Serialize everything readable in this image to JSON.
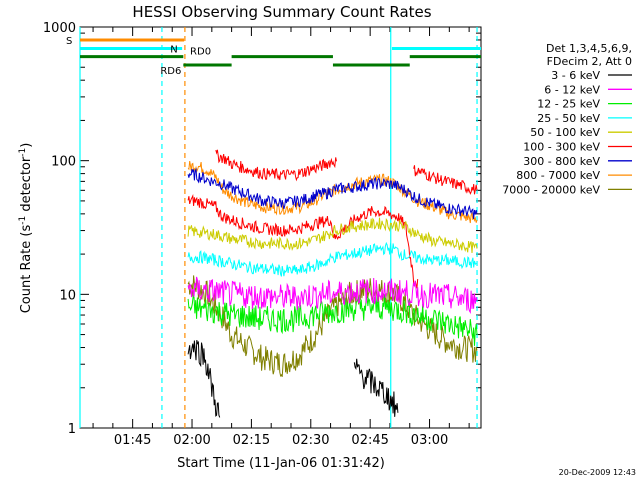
{
  "chart_data": {
    "type": "line",
    "title": "HESSI Observing Summary Count Rates",
    "xlabel": "Start Time (11-Jan-06 01:31:42)",
    "ylabel_main": "Count Rate (s",
    "ylabel_sup1": "-1",
    "ylabel_mid": " detector",
    "ylabel_sup2": "-1",
    "ylabel_end": ")",
    "date_stamp": "20-Dec-2009 12:43",
    "x_ticks": [
      {
        "label": "01:45",
        "min": 105
      },
      {
        "label": "02:00",
        "min": 120
      },
      {
        "label": "02:15",
        "min": 135
      },
      {
        "label": "02:30",
        "min": 150
      },
      {
        "label": "02:45",
        "min": 165
      },
      {
        "label": "03:00",
        "min": 180
      }
    ],
    "x_range_min": [
      91.7,
      193
    ],
    "y_scale": "log",
    "y_range": [
      1,
      1000
    ],
    "y_ticks": [
      {
        "label": "1",
        "v": 1
      },
      {
        "label": "10",
        "v": 10
      },
      {
        "label": "100",
        "v": 100
      },
      {
        "label": "1000",
        "v": 1000
      }
    ],
    "legend": {
      "placement": "right",
      "header1": "Det 1,3,4,5,6,9,",
      "header2": "FDecim 2, Att 0",
      "items": [
        {
          "label": "3 - 6 keV",
          "color": "#000000"
        },
        {
          "label": "6 - 12 keV",
          "color": "#ff00ff"
        },
        {
          "label": "12 - 25 keV",
          "color": "#00ee00"
        },
        {
          "label": "25 - 50 keV",
          "color": "#00ffff"
        },
        {
          "label": "50 - 100 keV",
          "color": "#cccc00"
        },
        {
          "label": "100 - 300 keV",
          "color": "#ff0000"
        },
        {
          "label": "300 - 800 keV",
          "color": "#0000cc"
        },
        {
          "label": "800 - 7000 keV",
          "color": "#ff8c00"
        },
        {
          "label": "7000 - 20000 keV",
          "color": "#808000"
        }
      ]
    },
    "flags": [
      {
        "label": "S",
        "color": "#ff8c00",
        "y": 800,
        "segments": [
          [
            91.7,
            118
          ]
        ]
      },
      {
        "label": "N",
        "color": "#00ffff",
        "y": 690,
        "segments": [
          [
            91.7,
            117.5
          ],
          [
            170.5,
            193
          ]
        ]
      },
      {
        "label": "RD0",
        "color": "#007700",
        "y": 600,
        "segments": [
          [
            91.7,
            117.8
          ],
          [
            130,
            155.6
          ],
          [
            175,
            193
          ]
        ]
      },
      {
        "label": "RD6",
        "color": "#007700",
        "y": 520,
        "segments": [
          [
            117.8,
            130
          ],
          [
            155.6,
            175
          ]
        ]
      }
    ],
    "vlines": [
      {
        "min": 91.7,
        "color": "#00ffff",
        "style": "solid"
      },
      {
        "min": 112.4,
        "color": "#00ffff",
        "style": "dashed"
      },
      {
        "min": 118.2,
        "color": "#ff8c00",
        "style": "dashed"
      },
      {
        "min": 170.2,
        "color": "#00ffff",
        "style": "solid"
      },
      {
        "min": 192,
        "color": "#00ffff",
        "style": "dashed"
      }
    ],
    "series": [
      {
        "name": "7000 - 20000 keV",
        "color": "#808000",
        "points": [
          [
            119,
            12
          ],
          [
            121,
            11.5
          ],
          [
            124,
            10
          ],
          [
            126,
            8
          ],
          [
            128,
            6.5
          ],
          [
            130,
            5
          ],
          [
            134,
            4
          ],
          [
            138,
            3.3
          ],
          [
            143,
            3
          ],
          [
            147,
            3.5
          ],
          [
            150,
            4.5
          ],
          [
            153,
            6
          ],
          [
            156,
            8
          ],
          [
            160,
            10
          ],
          [
            165,
            11
          ],
          [
            169,
            10.5
          ],
          [
            171,
            10
          ],
          [
            173,
            9
          ],
          [
            176,
            7
          ],
          [
            180,
            5.5
          ],
          [
            184,
            4.5
          ],
          [
            188,
            4
          ],
          [
            192,
            3.8
          ]
        ]
      },
      {
        "name": "800 - 7000 keV",
        "color": "#ff8c00",
        "points": [
          [
            119,
            90
          ],
          [
            121,
            92
          ],
          [
            124,
            85
          ],
          [
            126,
            75
          ],
          [
            128,
            60
          ],
          [
            130,
            55
          ],
          [
            134,
            48
          ],
          [
            138,
            45
          ],
          [
            143,
            44
          ],
          [
            147,
            45
          ],
          [
            150,
            48
          ],
          [
            153,
            55
          ],
          [
            156,
            60
          ],
          [
            160,
            66
          ],
          [
            164,
            70
          ],
          [
            168,
            72
          ],
          [
            170,
            70
          ],
          [
            172,
            65
          ],
          [
            174,
            58
          ],
          [
            177,
            50
          ],
          [
            181,
            45
          ],
          [
            185,
            40
          ],
          [
            189,
            38
          ],
          [
            192,
            36
          ]
        ]
      },
      {
        "name": "300 - 800 keV",
        "color": "#0000cc",
        "points": [
          [
            119,
            80
          ],
          [
            121,
            78
          ],
          [
            124,
            72
          ],
          [
            127,
            68
          ],
          [
            130,
            62
          ],
          [
            134,
            56
          ],
          [
            138,
            50
          ],
          [
            143,
            48
          ],
          [
            147,
            50
          ],
          [
            150,
            53
          ],
          [
            152,
            56
          ],
          [
            154,
            57
          ],
          [
            156,
            61
          ],
          [
            160,
            63
          ],
          [
            164,
            66
          ],
          [
            168,
            68
          ],
          [
            171,
            66
          ],
          [
            174,
            60
          ],
          [
            177,
            52
          ],
          [
            181,
            47
          ],
          [
            185,
            44
          ],
          [
            189,
            42
          ],
          [
            192,
            40
          ]
        ]
      },
      {
        "name": "100 - 300 keV",
        "color": "#ff0000",
        "points": [
          [
            119,
            50
          ],
          [
            121,
            50
          ],
          [
            124,
            47
          ],
          [
            126,
            45
          ],
          [
            127,
            40
          ],
          [
            128,
            38
          ],
          [
            130,
            36
          ],
          [
            134,
            33
          ],
          [
            138,
            31
          ],
          [
            143,
            30
          ],
          [
            147,
            31
          ],
          [
            150,
            33
          ],
          [
            153,
            35
          ],
          [
            155,
            36
          ],
          [
            156,
            26
          ],
          [
            158,
            30
          ],
          [
            162,
            38
          ],
          [
            166,
            42
          ],
          [
            170,
            40
          ],
          [
            172,
            38
          ],
          [
            174,
            32
          ],
          [
            175,
            20
          ],
          [
            176,
            14
          ],
          [
            177,
            13
          ]
        ]
      },
      {
        "name": "100 - 300 keV (seg 2)",
        "color": "#ff0000",
        "points": [
          [
            126,
            110
          ],
          [
            128,
            105
          ],
          [
            130,
            95
          ],
          [
            134,
            86
          ],
          [
            138,
            80
          ],
          [
            143,
            78
          ],
          [
            147,
            80
          ],
          [
            150,
            86
          ],
          [
            153,
            92
          ],
          [
            155,
            98
          ],
          [
            156.5,
            99
          ]
        ]
      },
      {
        "name": "100 - 300 keV (seg 3)",
        "color": "#ff0000",
        "points": [
          [
            176,
            85
          ],
          [
            178,
            82
          ],
          [
            181,
            75
          ],
          [
            184,
            70
          ],
          [
            188,
            65
          ],
          [
            192,
            60
          ]
        ]
      },
      {
        "name": "50 - 100 keV",
        "color": "#cccc00",
        "points": [
          [
            119,
            30
          ],
          [
            122,
            29
          ],
          [
            126,
            28
          ],
          [
            130,
            26
          ],
          [
            134,
            25
          ],
          [
            138,
            24
          ],
          [
            143,
            24
          ],
          [
            147,
            24
          ],
          [
            150,
            25
          ],
          [
            153,
            27
          ],
          [
            156,
            30
          ],
          [
            160,
            32
          ],
          [
            164,
            33
          ],
          [
            168,
            34
          ],
          [
            171,
            33
          ],
          [
            174,
            32
          ],
          [
            177,
            28
          ],
          [
            181,
            25
          ],
          [
            185,
            24
          ],
          [
            189,
            23
          ],
          [
            192,
            22
          ]
        ]
      },
      {
        "name": "25 - 50 keV",
        "color": "#00ffff",
        "points": [
          [
            119,
            19
          ],
          [
            122,
            19
          ],
          [
            126,
            18
          ],
          [
            130,
            17
          ],
          [
            134,
            16
          ],
          [
            138,
            15.5
          ],
          [
            143,
            15
          ],
          [
            147,
            15
          ],
          [
            150,
            16
          ],
          [
            153,
            17
          ],
          [
            156,
            19
          ],
          [
            160,
            20
          ],
          [
            164,
            21
          ],
          [
            168,
            22
          ],
          [
            171,
            22
          ],
          [
            173,
            20
          ],
          [
            176,
            19
          ],
          [
            180,
            18
          ],
          [
            184,
            18
          ],
          [
            188,
            17.5
          ],
          [
            192,
            17
          ]
        ]
      },
      {
        "name": "12 - 25 keV",
        "color": "#00ee00",
        "points": [
          [
            119,
            8
          ],
          [
            122,
            7.8
          ],
          [
            126,
            7.5
          ],
          [
            130,
            7
          ],
          [
            134,
            6.8
          ],
          [
            138,
            6.5
          ],
          [
            143,
            6.5
          ],
          [
            147,
            6.5
          ],
          [
            150,
            7
          ],
          [
            153,
            7.3
          ],
          [
            156,
            7.5
          ],
          [
            160,
            7.8
          ],
          [
            164,
            8
          ],
          [
            168,
            8
          ],
          [
            171,
            7.8
          ],
          [
            174,
            7.5
          ],
          [
            177,
            7
          ],
          [
            181,
            6.5
          ],
          [
            185,
            6
          ],
          [
            189,
            5.5
          ],
          [
            192,
            5
          ]
        ]
      },
      {
        "name": "6 - 12 keV",
        "color": "#ff00ff",
        "points": [
          [
            119,
            11
          ],
          [
            122,
            10.8
          ],
          [
            126,
            10.5
          ],
          [
            130,
            10
          ],
          [
            134,
            9.8
          ],
          [
            138,
            9.6
          ],
          [
            143,
            9.5
          ],
          [
            147,
            9.5
          ],
          [
            150,
            9.8
          ],
          [
            153,
            10
          ],
          [
            156,
            10.2
          ],
          [
            160,
            10.5
          ],
          [
            164,
            10.6
          ],
          [
            168,
            10.6
          ],
          [
            171,
            10.5
          ],
          [
            174,
            10.3
          ],
          [
            177,
            10
          ],
          [
            181,
            9.8
          ],
          [
            185,
            9.5
          ],
          [
            189,
            9.2
          ],
          [
            192,
            9
          ]
        ]
      },
      {
        "name": "3 - 6 keV",
        "color": "#000000",
        "points": [
          [
            119,
            4
          ],
          [
            121,
            4
          ],
          [
            123,
            3.5
          ],
          [
            124,
            2.8
          ],
          [
            125,
            2
          ],
          [
            126,
            1.5
          ],
          [
            127,
            1.2
          ]
        ]
      },
      {
        "name": "3 - 6 keV (seg 2)",
        "color": "#000000",
        "points": [
          [
            161,
            2.8
          ],
          [
            163,
            2.5
          ],
          [
            165,
            2.2
          ],
          [
            167,
            2
          ],
          [
            169,
            1.8
          ],
          [
            171,
            1.5
          ],
          [
            172,
            1.3
          ]
        ]
      }
    ]
  }
}
